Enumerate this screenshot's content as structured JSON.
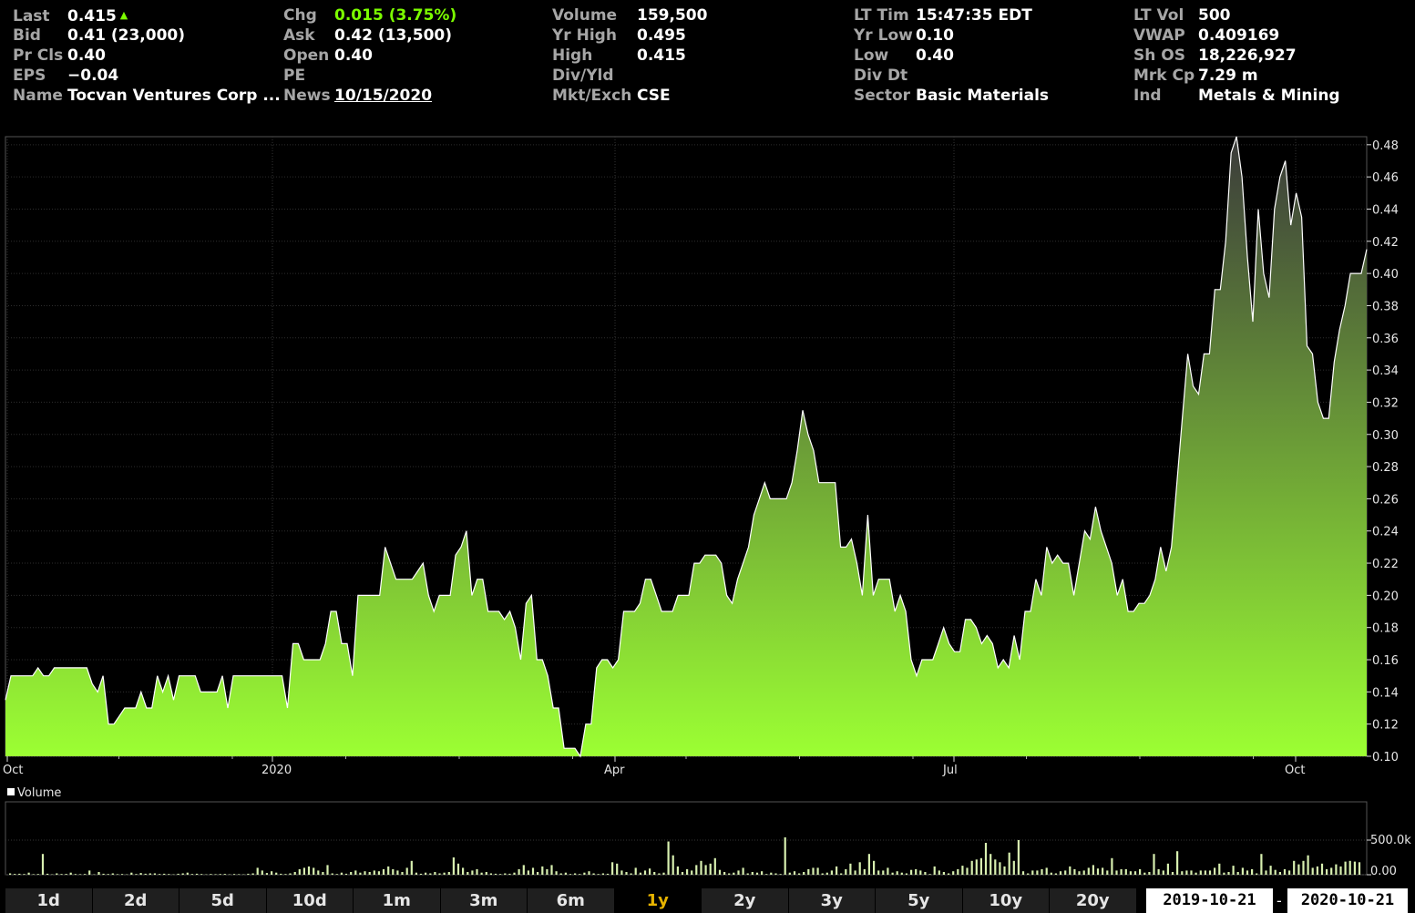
{
  "quote": {
    "col1": [
      {
        "label": "Last",
        "value": "0.415"
      },
      {
        "label": "Bid",
        "value": "0.41 (23,000)"
      },
      {
        "label": "Pr Cls",
        "value": "0.40"
      },
      {
        "label": "EPS",
        "value": "−0.04"
      },
      {
        "label": "Name",
        "value": "Tocvan Ventures Corp ..."
      }
    ],
    "col2": [
      {
        "label": "Chg",
        "value": "0.015 (3.75%)"
      },
      {
        "label": "Ask",
        "value": "0.42 (13,500)"
      },
      {
        "label": "Open",
        "value": "0.40"
      },
      {
        "label": "PE",
        "value": ""
      },
      {
        "label": "News",
        "value": "10/15/2020"
      }
    ],
    "col3": [
      {
        "label": "Volume",
        "value": "159,500"
      },
      {
        "label": "Yr High",
        "value": "0.495"
      },
      {
        "label": "High",
        "value": "0.415"
      },
      {
        "label": "Div/Yld",
        "value": ""
      },
      {
        "label": "Mkt/Exch",
        "value": "CSE"
      }
    ],
    "col4": [
      {
        "label": "LT Tim",
        "value": "15:47:35 EDT"
      },
      {
        "label": "Yr Low",
        "value": "0.10"
      },
      {
        "label": "Low",
        "value": "0.40"
      },
      {
        "label": "Div Dt",
        "value": ""
      },
      {
        "label": "Sector",
        "value": "Basic Materials"
      }
    ],
    "col5": [
      {
        "label": "LT Vol",
        "value": "500"
      },
      {
        "label": "VWAP",
        "value": "0.409169"
      },
      {
        "label": "Sh OS",
        "value": "18,226,927"
      },
      {
        "label": "Mrk Cp",
        "value": "7.29 m"
      },
      {
        "label": "Ind",
        "value": "Metals & Mining"
      }
    ]
  },
  "colors": {
    "up": "#7cfc00",
    "area_top": "#3b3b3b",
    "area_bottom": "#9cff33",
    "line": "#ffffff",
    "active_range": "#e8b400"
  },
  "chart_data": [
    {
      "type": "area",
      "x_tick_labels": [
        "Oct",
        "2020",
        "Apr",
        "Jul",
        "Oct"
      ],
      "ylim": [
        0.1,
        0.485
      ],
      "y_ticks": [
        "0.10",
        "0.12",
        "0.14",
        "0.16",
        "0.18",
        "0.20",
        "0.22",
        "0.24",
        "0.26",
        "0.28",
        "0.30",
        "0.32",
        "0.34",
        "0.36",
        "0.38",
        "0.40",
        "0.42",
        "0.44",
        "0.46",
        "0.48"
      ],
      "grid": true,
      "values": [
        0.135,
        0.15,
        0.15,
        0.15,
        0.15,
        0.15,
        0.155,
        0.15,
        0.15,
        0.155,
        0.155,
        0.155,
        0.155,
        0.155,
        0.155,
        0.155,
        0.145,
        0.14,
        0.15,
        0.12,
        0.12,
        0.125,
        0.13,
        0.13,
        0.13,
        0.14,
        0.13,
        0.13,
        0.15,
        0.14,
        0.15,
        0.135,
        0.15,
        0.15,
        0.15,
        0.15,
        0.14,
        0.14,
        0.14,
        0.14,
        0.15,
        0.13,
        0.15,
        0.15,
        0.15,
        0.15,
        0.15,
        0.15,
        0.15,
        0.15,
        0.15,
        0.15,
        0.13,
        0.17,
        0.17,
        0.16,
        0.16,
        0.16,
        0.16,
        0.17,
        0.19,
        0.19,
        0.17,
        0.17,
        0.15,
        0.2,
        0.2,
        0.2,
        0.2,
        0.2,
        0.23,
        0.22,
        0.21,
        0.21,
        0.21,
        0.21,
        0.215,
        0.22,
        0.2,
        0.19,
        0.2,
        0.2,
        0.2,
        0.225,
        0.23,
        0.24,
        0.2,
        0.21,
        0.21,
        0.19,
        0.19,
        0.19,
        0.185,
        0.19,
        0.18,
        0.16,
        0.195,
        0.2,
        0.16,
        0.16,
        0.15,
        0.13,
        0.13,
        0.105,
        0.105,
        0.105,
        0.1,
        0.12,
        0.12,
        0.155,
        0.16,
        0.16,
        0.155,
        0.16,
        0.19,
        0.19,
        0.19,
        0.195,
        0.21,
        0.21,
        0.2,
        0.19,
        0.19,
        0.19,
        0.2,
        0.2,
        0.2,
        0.22,
        0.22,
        0.225,
        0.225,
        0.225,
        0.22,
        0.2,
        0.195,
        0.21,
        0.22,
        0.23,
        0.25,
        0.26,
        0.27,
        0.26,
        0.26,
        0.26,
        0.26,
        0.27,
        0.29,
        0.315,
        0.3,
        0.29,
        0.27,
        0.27,
        0.27,
        0.27,
        0.23,
        0.23,
        0.235,
        0.22,
        0.2,
        0.25,
        0.2,
        0.21,
        0.21,
        0.21,
        0.19,
        0.2,
        0.19,
        0.16,
        0.15,
        0.16,
        0.16,
        0.16,
        0.17,
        0.18,
        0.17,
        0.165,
        0.165,
        0.185,
        0.185,
        0.18,
        0.17,
        0.175,
        0.17,
        0.155,
        0.16,
        0.155,
        0.175,
        0.16,
        0.19,
        0.19,
        0.21,
        0.2,
        0.23,
        0.22,
        0.225,
        0.22,
        0.22,
        0.2,
        0.22,
        0.24,
        0.235,
        0.255,
        0.24,
        0.23,
        0.22,
        0.2,
        0.21,
        0.19,
        0.19,
        0.195,
        0.195,
        0.2,
        0.21,
        0.23,
        0.215,
        0.23,
        0.27,
        0.31,
        0.35,
        0.33,
        0.325,
        0.35,
        0.35,
        0.39,
        0.39,
        0.42,
        0.475,
        0.485,
        0.46,
        0.41,
        0.37,
        0.44,
        0.4,
        0.385,
        0.44,
        0.46,
        0.47,
        0.43,
        0.45,
        0.435,
        0.355,
        0.35,
        0.32,
        0.31,
        0.31,
        0.345,
        0.365,
        0.38,
        0.4,
        0.4,
        0.4,
        0.415
      ]
    },
    {
      "type": "bar",
      "title": "Volume",
      "y_ticks": [
        "0.00",
        "500.0k"
      ],
      "ylim": [
        0,
        1000000
      ],
      "values": [
        20000,
        12000,
        15000,
        10000,
        30000,
        8000,
        10000,
        300000,
        15000,
        5000,
        20000,
        10000,
        12000,
        30000,
        10000,
        8000,
        10000,
        60000,
        5000,
        40000,
        15000,
        10000,
        20000,
        8000,
        10000,
        5000,
        30000,
        10000,
        25000,
        15000,
        20000,
        20000,
        10000,
        15000,
        10000,
        5000,
        15000,
        20000,
        30000,
        10000,
        15000,
        10000,
        5000,
        10000,
        8000,
        10000,
        12000,
        5000,
        10000,
        8000,
        5000,
        15000,
        20000,
        100000,
        60000,
        25000,
        50000,
        30000,
        15000,
        10000,
        20000,
        40000,
        80000,
        100000,
        120000,
        100000,
        60000,
        40000,
        140000,
        20000,
        10000,
        30000,
        15000,
        40000,
        60000,
        30000,
        50000,
        40000,
        60000,
        50000,
        80000,
        120000,
        80000,
        60000,
        40000,
        100000,
        200000,
        30000,
        15000,
        30000,
        20000,
        40000,
        20000,
        30000,
        40000,
        250000,
        160000,
        100000,
        40000,
        60000,
        80000,
        30000,
        40000,
        20000,
        15000,
        10000,
        20000,
        15000,
        30000,
        80000,
        140000,
        60000,
        100000,
        40000,
        120000,
        80000,
        140000,
        50000,
        20000,
        30000,
        10000,
        20000,
        10000,
        30000,
        50000,
        20000,
        10000,
        20000,
        15000,
        180000,
        160000,
        60000,
        40000,
        20000,
        100000,
        30000,
        60000,
        90000,
        40000,
        20000,
        30000,
        480000,
        280000,
        120000,
        40000,
        80000,
        60000,
        140000,
        200000,
        140000,
        160000,
        240000,
        70000,
        40000,
        20000,
        30000,
        60000,
        100000,
        20000,
        40000,
        30000,
        50000,
        10000,
        30000,
        20000,
        10000,
        540000,
        30000,
        50000,
        20000,
        40000,
        80000,
        100000,
        100000,
        20000,
        30000,
        60000,
        120000,
        20000,
        80000,
        160000,
        60000,
        180000,
        80000,
        300000,
        200000,
        60000,
        60000,
        100000,
        30000,
        50000,
        30000,
        20000,
        70000,
        80000,
        60000,
        40000,
        10000,
        120000,
        60000,
        40000,
        20000,
        50000,
        80000,
        130000,
        100000,
        200000,
        220000,
        240000,
        460000,
        300000,
        220000,
        180000,
        120000,
        320000,
        200000,
        500000,
        50000,
        20000,
        60000,
        60000,
        80000,
        100000,
        30000,
        20000,
        50000,
        60000,
        120000,
        80000,
        50000,
        60000,
        100000,
        140000,
        90000,
        100000,
        60000,
        240000,
        60000,
        80000,
        80000,
        50000,
        50000,
        80000,
        30000,
        40000,
        300000,
        80000,
        60000,
        160000,
        40000,
        340000,
        50000,
        60000,
        60000,
        30000,
        60000,
        60000,
        60000,
        100000,
        160000,
        30000,
        40000,
        130000,
        40000,
        100000,
        60000,
        80000,
        20000,
        300000,
        60000,
        130000,
        70000,
        40000,
        80000,
        60000,
        200000,
        150000,
        200000,
        280000,
        100000,
        120000,
        160000,
        80000,
        100000,
        150000,
        120000,
        190000,
        200000,
        190000,
        180000
      ]
    }
  ],
  "toolbar": {
    "ranges": [
      "1d",
      "2d",
      "5d",
      "10d",
      "1m",
      "3m",
      "6m",
      "1y",
      "2y",
      "3y",
      "5y",
      "10y",
      "20y"
    ],
    "active": "1y",
    "start_date": "2019-10-21",
    "end_date": "2020-10-21"
  }
}
